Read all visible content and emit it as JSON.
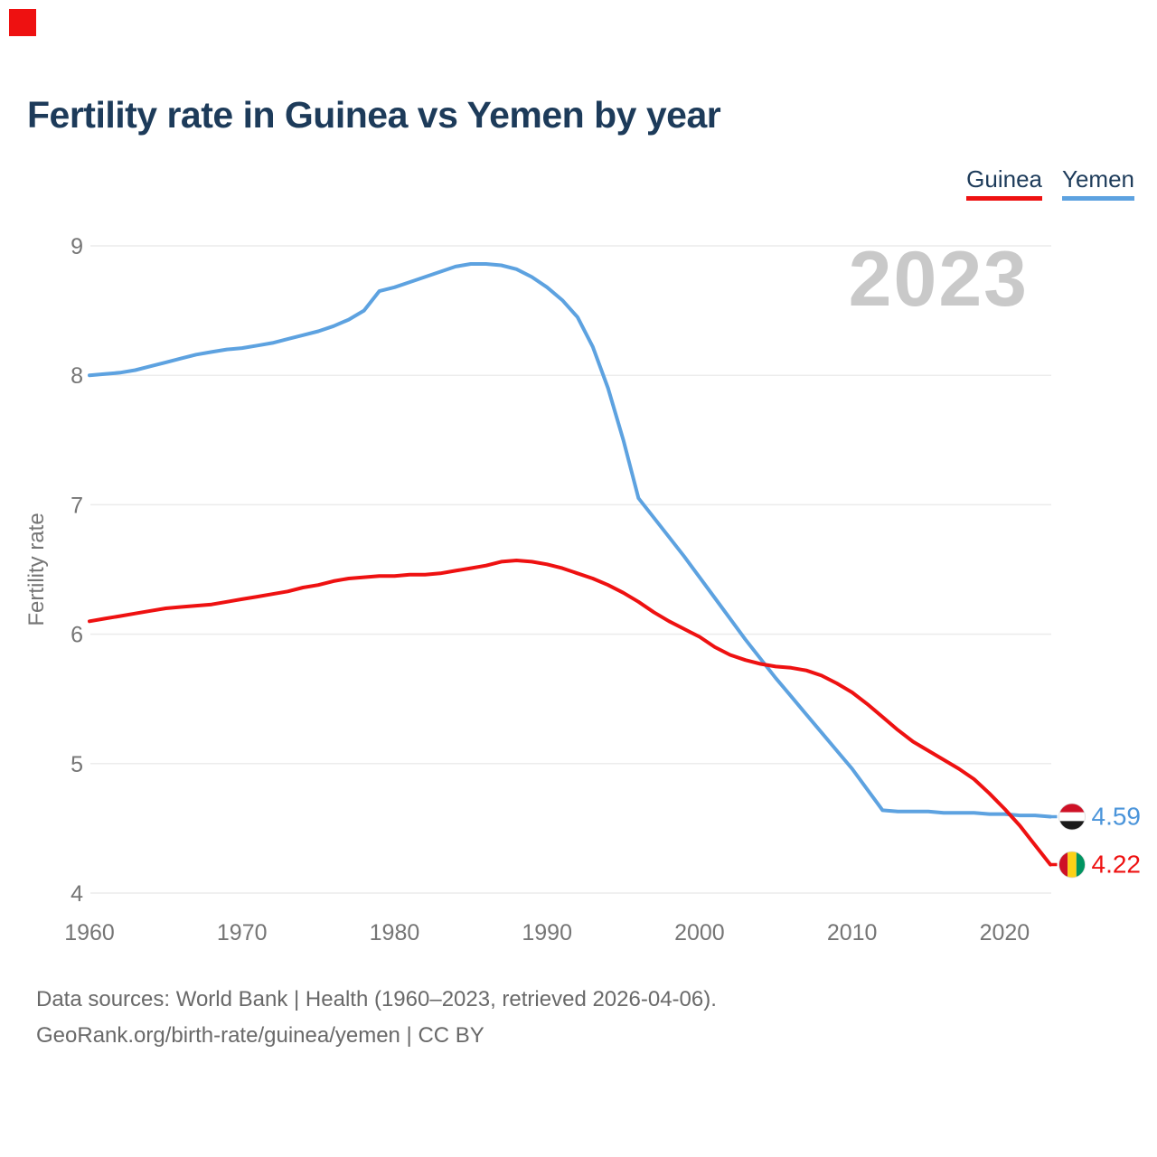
{
  "page": {
    "brand_mark_color": "#ee1111",
    "title": "Fertility rate in Guinea vs Yemen by year",
    "watermark": "2023"
  },
  "legend": {
    "items": [
      {
        "label": "Guinea",
        "color": "#ee1111"
      },
      {
        "label": "Yemen",
        "color": "#5da2e0"
      }
    ]
  },
  "footer": {
    "line1": "Data sources: World Bank | Health (1960–2023, retrieved 2026-04-06).",
    "line2": "GeoRank.org/birth-rate/guinea/yemen | CC BY"
  },
  "chart_data": {
    "type": "line",
    "title": "Fertility rate in Guinea vs Yemen by year",
    "xlabel": "",
    "ylabel": "Fertility rate",
    "xlim": [
      1960,
      2023
    ],
    "ylim": [
      4,
      9
    ],
    "x_ticks": [
      1960,
      1970,
      1980,
      1990,
      2000,
      2010,
      2020
    ],
    "y_ticks": [
      4,
      5,
      6,
      7,
      8,
      9
    ],
    "grid": "horizontal",
    "gridline_color": "#ececec",
    "tick_color": "#757575",
    "legend_position": "top-right",
    "x": [
      1960,
      1961,
      1962,
      1963,
      1964,
      1965,
      1966,
      1967,
      1968,
      1969,
      1970,
      1971,
      1972,
      1973,
      1974,
      1975,
      1976,
      1977,
      1978,
      1979,
      1980,
      1981,
      1982,
      1983,
      1984,
      1985,
      1986,
      1987,
      1988,
      1989,
      1990,
      1991,
      1992,
      1993,
      1994,
      1995,
      1996,
      1997,
      1998,
      1999,
      2000,
      2001,
      2002,
      2003,
      2004,
      2005,
      2006,
      2007,
      2008,
      2009,
      2010,
      2011,
      2012,
      2013,
      2014,
      2015,
      2016,
      2017,
      2018,
      2019,
      2020,
      2021,
      2022,
      2023
    ],
    "series": [
      {
        "name": "Yemen",
        "color": "#5da2e0",
        "label_color": "#4a94da",
        "end_label": "4.59",
        "end_value": 4.59,
        "flag_stripes": {
          "orientation": "horizontal",
          "colors": [
            "#ce1126",
            "#ffffff",
            "#1a1a1a"
          ]
        },
        "values": [
          8.0,
          8.01,
          8.02,
          8.04,
          8.07,
          8.1,
          8.13,
          8.16,
          8.18,
          8.2,
          8.21,
          8.23,
          8.25,
          8.28,
          8.31,
          8.34,
          8.38,
          8.43,
          8.5,
          8.65,
          8.68,
          8.72,
          8.76,
          8.8,
          8.84,
          8.86,
          8.86,
          8.85,
          8.82,
          8.76,
          8.68,
          8.58,
          8.45,
          8.22,
          7.9,
          7.5,
          7.05,
          6.9,
          6.75,
          6.6,
          6.44,
          6.28,
          6.12,
          5.96,
          5.81,
          5.66,
          5.52,
          5.38,
          5.24,
          5.1,
          4.96,
          4.8,
          4.64,
          4.63,
          4.63,
          4.63,
          4.62,
          4.62,
          4.62,
          4.61,
          4.61,
          4.6,
          4.6,
          4.59
        ]
      },
      {
        "name": "Guinea",
        "color": "#ee1111",
        "label_color": "#ee1111",
        "end_label": "4.22",
        "end_value": 4.22,
        "flag_stripes": {
          "orientation": "vertical",
          "colors": [
            "#ce1126",
            "#fcd116",
            "#009460"
          ]
        },
        "values": [
          6.1,
          6.12,
          6.14,
          6.16,
          6.18,
          6.2,
          6.21,
          6.22,
          6.23,
          6.25,
          6.27,
          6.29,
          6.31,
          6.33,
          6.36,
          6.38,
          6.41,
          6.43,
          6.44,
          6.45,
          6.45,
          6.46,
          6.46,
          6.47,
          6.49,
          6.51,
          6.53,
          6.56,
          6.57,
          6.56,
          6.54,
          6.51,
          6.47,
          6.43,
          6.38,
          6.32,
          6.25,
          6.17,
          6.1,
          6.04,
          5.98,
          5.9,
          5.84,
          5.8,
          5.77,
          5.75,
          5.74,
          5.72,
          5.68,
          5.62,
          5.55,
          5.46,
          5.36,
          5.26,
          5.17,
          5.1,
          5.03,
          4.96,
          4.88,
          4.77,
          4.65,
          4.52,
          4.37,
          4.22
        ]
      }
    ]
  }
}
